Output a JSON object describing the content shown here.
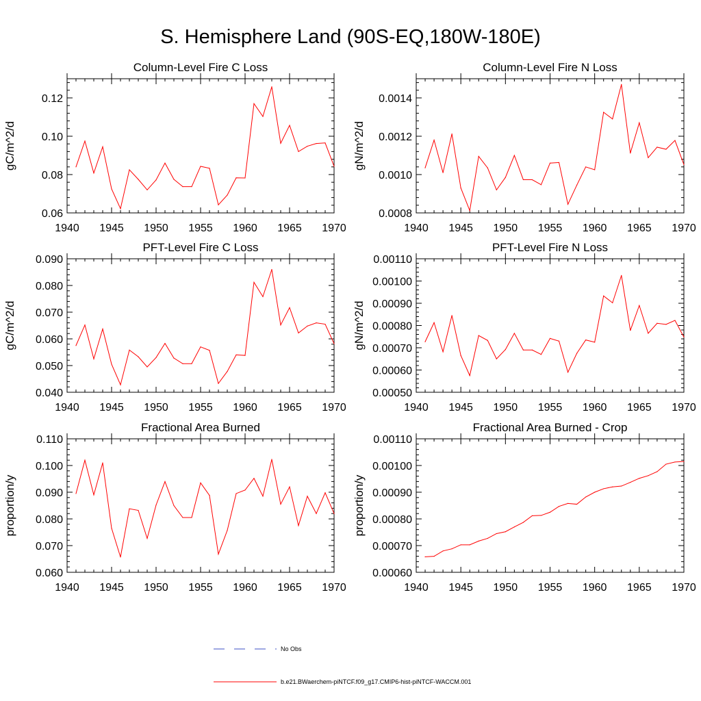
{
  "title": "S. Hemisphere Land (90S-EQ,180W-180E)",
  "colors": {
    "model_line": "#ff0000",
    "obs_line": "#3b4fc4",
    "axis": "#000000"
  },
  "legend": {
    "obs_label": "No Obs",
    "model_label": "b.e21.BWaerchem-piNTCF.f09_g17.CMIP6-hist-piNTCF-WACCM.001"
  },
  "chart_data": [
    {
      "type": "line",
      "title": "Column-Level Fire C Loss",
      "ylabel": "gC/m^2/d",
      "x": [
        1941,
        1942,
        1943,
        1944,
        1945,
        1946,
        1947,
        1948,
        1949,
        1950,
        1951,
        1952,
        1953,
        1954,
        1955,
        1956,
        1957,
        1958,
        1959,
        1960,
        1961,
        1962,
        1963,
        1964,
        1965,
        1966,
        1967,
        1968,
        1969,
        1970
      ],
      "series": [
        {
          "values": [
            0.084,
            0.0975,
            0.0808,
            0.0945,
            0.0725,
            0.0622,
            0.0825,
            0.0775,
            0.072,
            0.0772,
            0.086,
            0.0775,
            0.0737,
            0.0737,
            0.0843,
            0.0833,
            0.0642,
            0.0693,
            0.0783,
            0.0782,
            0.117,
            0.1103,
            0.1258,
            0.0963,
            0.1057,
            0.092,
            0.0948,
            0.0962,
            0.0965,
            0.0843
          ]
        }
      ],
      "xlim": [
        1940,
        1970
      ],
      "ylim": [
        0.06,
        0.13
      ],
      "xticks": [
        "1940",
        "1945",
        "1950",
        "1955",
        "1960",
        "1965",
        "1970"
      ],
      "yticks": [
        "0.06",
        "0.08",
        "0.10",
        "0.12"
      ]
    },
    {
      "type": "line",
      "title": "Column-Level Fire N Loss",
      "ylabel": "gN/m^2/d",
      "x": [
        1941,
        1942,
        1943,
        1944,
        1945,
        1946,
        1947,
        1948,
        1949,
        1950,
        1951,
        1952,
        1953,
        1954,
        1955,
        1956,
        1957,
        1958,
        1959,
        1960,
        1961,
        1962,
        1963,
        1964,
        1965,
        1966,
        1967,
        1968,
        1969,
        1970
      ],
      "series": [
        {
          "values": [
            0.001035,
            0.00118,
            0.00101,
            0.001212,
            0.00093,
            0.000812,
            0.001095,
            0.001035,
            0.00092,
            0.000985,
            0.0011,
            0.000973,
            0.000973,
            0.000947,
            0.00106,
            0.001063,
            0.000845,
            0.000945,
            0.00104,
            0.001025,
            0.001325,
            0.00129,
            0.00147,
            0.001112,
            0.00127,
            0.001088,
            0.001143,
            0.001132,
            0.001178,
            0.001052
          ]
        }
      ],
      "xlim": [
        1940,
        1970
      ],
      "ylim": [
        0.0008,
        0.0015
      ],
      "xticks": [
        "1940",
        "1945",
        "1950",
        "1955",
        "1960",
        "1965",
        "1970"
      ],
      "yticks": [
        "0.0008",
        "0.0010",
        "0.0012",
        "0.0014"
      ]
    },
    {
      "type": "line",
      "title": "PFT-Level Fire C Loss",
      "ylabel": "gC/m^2/d",
      "x": [
        1941,
        1942,
        1943,
        1944,
        1945,
        1946,
        1947,
        1948,
        1949,
        1950,
        1951,
        1952,
        1953,
        1954,
        1955,
        1956,
        1957,
        1958,
        1959,
        1960,
        1961,
        1962,
        1963,
        1964,
        1965,
        1966,
        1967,
        1968,
        1969,
        1970
      ],
      "series": [
        {
          "values": [
            0.0575,
            0.0652,
            0.0525,
            0.0637,
            0.0505,
            0.0428,
            0.0558,
            0.0533,
            0.0495,
            0.053,
            0.0583,
            0.0528,
            0.0507,
            0.0507,
            0.057,
            0.0557,
            0.0433,
            0.0478,
            0.054,
            0.0538,
            0.0812,
            0.0758,
            0.086,
            0.0652,
            0.0717,
            0.0622,
            0.0648,
            0.066,
            0.0655,
            0.0582
          ]
        }
      ],
      "xlim": [
        1940,
        1970
      ],
      "ylim": [
        0.04,
        0.09
      ],
      "xticks": [
        "1940",
        "1945",
        "1950",
        "1955",
        "1960",
        "1965",
        "1970"
      ],
      "yticks": [
        "0.040",
        "0.050",
        "0.060",
        "0.070",
        "0.080",
        "0.090"
      ]
    },
    {
      "type": "line",
      "title": "PFT-Level Fire N Loss",
      "ylabel": "gN/m^2/d",
      "x": [
        1941,
        1942,
        1943,
        1944,
        1945,
        1946,
        1947,
        1948,
        1949,
        1950,
        1951,
        1952,
        1953,
        1954,
        1955,
        1956,
        1957,
        1958,
        1959,
        1960,
        1961,
        1962,
        1963,
        1964,
        1965,
        1966,
        1967,
        1968,
        1969,
        1970
      ],
      "series": [
        {
          "values": [
            0.000727,
            0.000813,
            0.000682,
            0.000845,
            0.000665,
            0.000575,
            0.000755,
            0.000733,
            0.00065,
            0.000692,
            0.000765,
            0.00069,
            0.00069,
            0.00067,
            0.000742,
            0.00073,
            0.00059,
            0.000675,
            0.000735,
            0.000725,
            0.000933,
            0.000902,
            0.001025,
            0.000778,
            0.00089,
            0.000765,
            0.00081,
            0.000805,
            0.000823,
            0.000748
          ]
        }
      ],
      "xlim": [
        1940,
        1970
      ],
      "ylim": [
        0.0005,
        0.0011
      ],
      "xticks": [
        "1940",
        "1945",
        "1950",
        "1955",
        "1960",
        "1965",
        "1970"
      ],
      "yticks": [
        "0.00050",
        "0.00060",
        "0.00070",
        "0.00080",
        "0.00090",
        "0.00100",
        "0.00110"
      ]
    },
    {
      "type": "line",
      "title": "Fractional Area Burned",
      "ylabel": "proportion/y",
      "x": [
        1941,
        1942,
        1943,
        1944,
        1945,
        1946,
        1947,
        1948,
        1949,
        1950,
        1951,
        1952,
        1953,
        1954,
        1955,
        1956,
        1957,
        1958,
        1959,
        1960,
        1961,
        1962,
        1963,
        1964,
        1965,
        1966,
        1967,
        1968,
        1969,
        1970
      ],
      "series": [
        {
          "values": [
            0.0895,
            0.102,
            0.089,
            0.101,
            0.0765,
            0.0657,
            0.0838,
            0.0832,
            0.0727,
            0.0852,
            0.094,
            0.085,
            0.0805,
            0.0805,
            0.0935,
            0.0888,
            0.0668,
            0.0757,
            0.0895,
            0.0908,
            0.0952,
            0.0885,
            0.1023,
            0.0855,
            0.092,
            0.0775,
            0.0885,
            0.082,
            0.0898,
            0.082
          ]
        }
      ],
      "xlim": [
        1940,
        1970
      ],
      "ylim": [
        0.06,
        0.11
      ],
      "xticks": [
        "1940",
        "1945",
        "1950",
        "1955",
        "1960",
        "1965",
        "1970"
      ],
      "yticks": [
        "0.060",
        "0.070",
        "0.080",
        "0.090",
        "0.100",
        "0.110"
      ]
    },
    {
      "type": "line",
      "title": "Fractional Area Burned - Crop",
      "ylabel": "proportion/y",
      "x": [
        1941,
        1942,
        1943,
        1944,
        1945,
        1946,
        1947,
        1948,
        1949,
        1950,
        1951,
        1952,
        1953,
        1954,
        1955,
        1956,
        1957,
        1958,
        1959,
        1960,
        1961,
        1962,
        1963,
        1964,
        1965,
        1966,
        1967,
        1968,
        1969,
        1970
      ],
      "series": [
        {
          "values": [
            0.000658,
            0.00066,
            0.00068,
            0.000688,
            0.000703,
            0.000703,
            0.000717,
            0.000727,
            0.000745,
            0.000752,
            0.00077,
            0.000787,
            0.000812,
            0.000813,
            0.000825,
            0.000847,
            0.000858,
            0.000855,
            0.000882,
            0.0009,
            0.000913,
            0.00092,
            0.000923,
            0.000937,
            0.000952,
            0.000962,
            0.000977,
            0.001005,
            0.001013,
            0.001015
          ]
        }
      ],
      "xlim": [
        1940,
        1970
      ],
      "ylim": [
        0.0006,
        0.0011
      ],
      "xticks": [
        "1940",
        "1945",
        "1950",
        "1955",
        "1960",
        "1965",
        "1970"
      ],
      "yticks": [
        "0.00060",
        "0.00070",
        "0.00080",
        "0.00090",
        "0.00100",
        "0.00110"
      ]
    }
  ]
}
